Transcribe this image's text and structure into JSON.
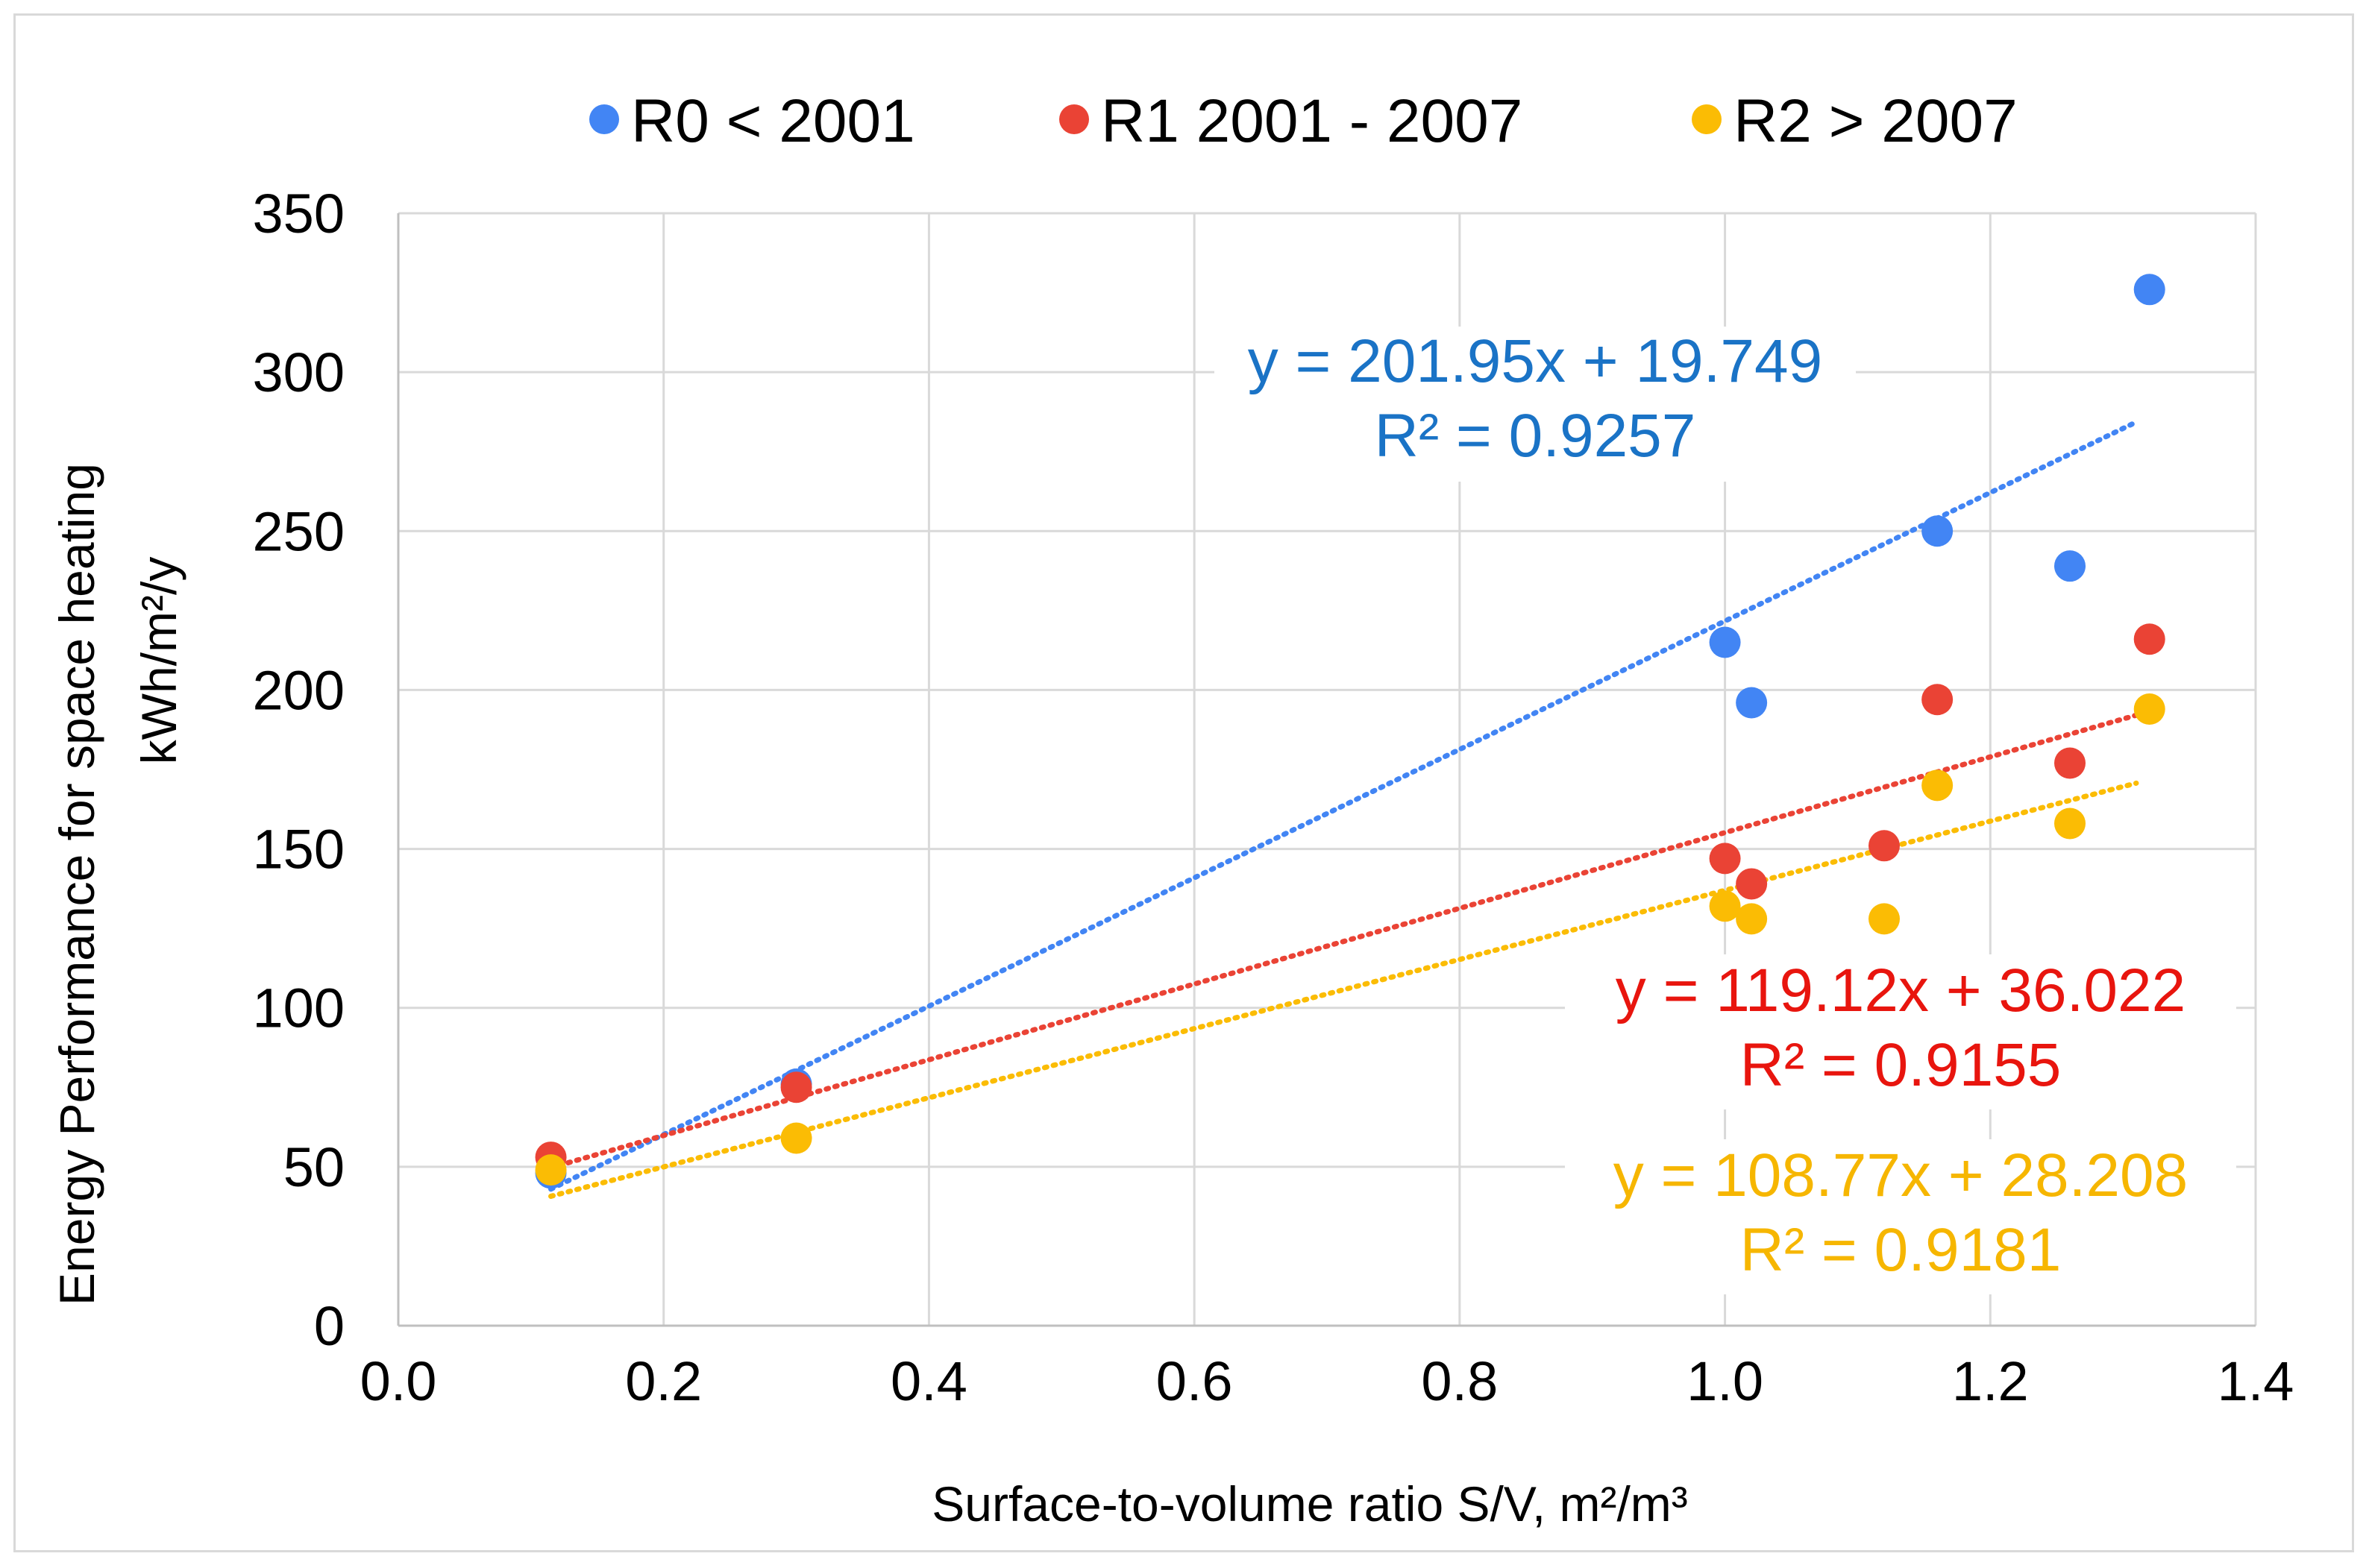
{
  "chart_data": {
    "type": "scatter",
    "title": "",
    "xlabel": "Surface-to-volume ratio S/V, m²/m³",
    "ylabel_line1": "Energy Performance for space heating",
    "ylabel_line2": "kWh/m²/y",
    "xlim": [
      0.0,
      1.4
    ],
    "ylim": [
      0,
      350
    ],
    "x_ticks": [
      "0.0",
      "0.2",
      "0.4",
      "0.6",
      "0.8",
      "1.0",
      "1.2",
      "1.4"
    ],
    "y_ticks": [
      "0",
      "50",
      "100",
      "150",
      "200",
      "250",
      "300",
      "350"
    ],
    "grid": true,
    "legend_position": "top",
    "series": [
      {
        "name": "R0 < 2001",
        "color": "#4285f4",
        "points": [
          {
            "x": 0.115,
            "y": 48
          },
          {
            "x": 0.3,
            "y": 76
          },
          {
            "x": 1.0,
            "y": 215
          },
          {
            "x": 1.02,
            "y": 196
          },
          {
            "x": 1.16,
            "y": 250
          },
          {
            "x": 1.26,
            "y": 239
          },
          {
            "x": 1.32,
            "y": 326
          }
        ],
        "trendline": {
          "slope": 201.95,
          "intercept": 19.749,
          "x_range": [
            0.115,
            1.31
          ]
        },
        "equation": "y = 201.95x + 19.749",
        "r2": "R² = 0.9257",
        "label_color": "#1a73c6"
      },
      {
        "name": "R1 2001 - 2007",
        "color": "#ea4335",
        "points": [
          {
            "x": 0.115,
            "y": 53
          },
          {
            "x": 0.3,
            "y": 75
          },
          {
            "x": 1.0,
            "y": 147
          },
          {
            "x": 1.02,
            "y": 139
          },
          {
            "x": 1.12,
            "y": 151
          },
          {
            "x": 1.16,
            "y": 197
          },
          {
            "x": 1.26,
            "y": 177
          },
          {
            "x": 1.32,
            "y": 216
          }
        ],
        "trendline": {
          "slope": 119.12,
          "intercept": 36.022,
          "x_range": [
            0.115,
            1.31
          ]
        },
        "equation": "y = 119.12x + 36.022",
        "r2": "R² = 0.9155",
        "label_color": "#e8150e"
      },
      {
        "name": "R2 > 2007",
        "color": "#fbbc04",
        "points": [
          {
            "x": 0.115,
            "y": 49
          },
          {
            "x": 0.3,
            "y": 59
          },
          {
            "x": 1.0,
            "y": 132
          },
          {
            "x": 1.02,
            "y": 128
          },
          {
            "x": 1.12,
            "y": 128
          },
          {
            "x": 1.16,
            "y": 170
          },
          {
            "x": 1.26,
            "y": 158
          },
          {
            "x": 1.32,
            "y": 194
          }
        ],
        "trendline": {
          "slope": 108.77,
          "intercept": 28.208,
          "x_range": [
            0.115,
            1.31
          ]
        },
        "equation": "y = 108.77x + 28.208",
        "r2": "R² = 0.9181",
        "label_color": "#f6b600"
      }
    ]
  }
}
